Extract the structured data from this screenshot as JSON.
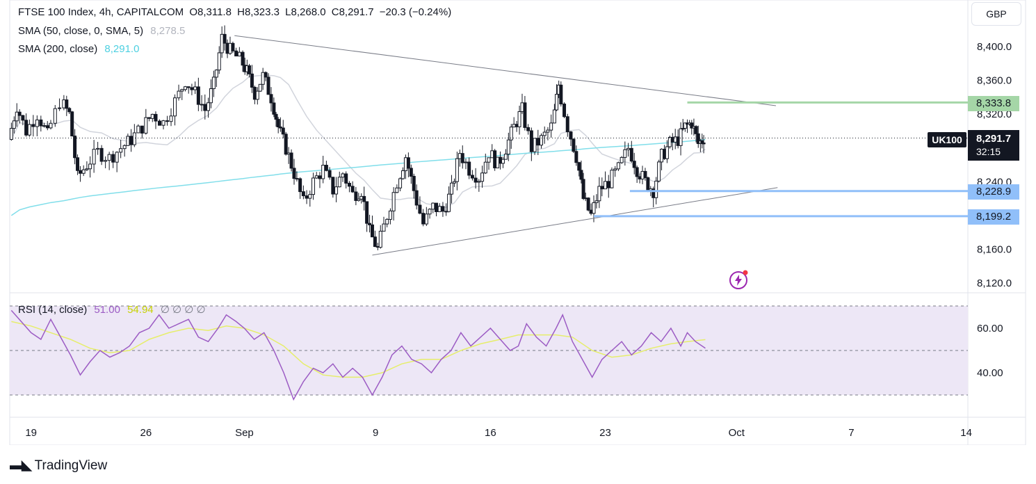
{
  "header": {
    "symbol_line": "FTSE 100 Index, 4h, CAPITALCOM",
    "open": "O8,311.8",
    "high": "H8,323.3",
    "low": "L8,268.0",
    "close": "C8,291.7",
    "change": "−20.3 (−0.24%)",
    "sma50_label": "SMA (50, close, 0, SMA, 5)",
    "sma50_value": "8,278.5",
    "sma200_label": "SMA (200, close)",
    "sma200_value": "8,291.0",
    "rsi_label": "RSI (14, close)",
    "rsi_value": "51.00",
    "rsi_ma_value": "54.94",
    "rsi_extra": "∅ ∅ ∅ ∅"
  },
  "currency": "GBP",
  "symbol_tag": "UK100",
  "price_tag": {
    "price": "8,291.7",
    "countdown": "32:15"
  },
  "level_tags": {
    "resistance": "8,333.8",
    "support1": "8,228.9",
    "support2": "8,199.2"
  },
  "brand": "TradingView",
  "colors": {
    "up": "#131722",
    "down": "#131722",
    "sma50": "#d1d4dc",
    "sma200": "#80deea",
    "rsi": "#9c5cc4",
    "rsi_ma": "#e6ee6a",
    "rsi_band": "#ede7f6",
    "resistance": "#a5d6a7",
    "support": "#90bff9"
  },
  "chart_data": [
    {
      "type": "candlestick",
      "title": "FTSE 100 Index, 4h, CAPITALCOM",
      "ylim": [
        8100,
        8460
      ],
      "y_ticks": [
        "8,400.0",
        "8,360.0",
        "8,320.0",
        "8,240.0",
        "8,160.0",
        "8,120.0"
      ],
      "y_tick_values": [
        8400,
        8360,
        8320,
        8240,
        8160,
        8120
      ],
      "x_ticks": [
        "19",
        "26",
        "Sep",
        "9",
        "16",
        "23",
        "Oct",
        "7",
        "14"
      ],
      "x_tick_days": [
        19,
        26,
        32,
        40,
        47,
        54,
        62,
        69,
        76
      ],
      "x_start_day": 17.7,
      "x_end_day": 76.1,
      "last_day": 60.1,
      "current_price": 8291.7,
      "closes_path": [
        [
          17.8,
          8290
        ],
        [
          18.3,
          8330
        ],
        [
          18.9,
          8300
        ],
        [
          19.6,
          8320
        ],
        [
          20.2,
          8295
        ],
        [
          21.0,
          8335
        ],
        [
          21.5,
          8320
        ],
        [
          22.0,
          8245
        ],
        [
          22.6,
          8260
        ],
        [
          23.3,
          8275
        ],
        [
          24.0,
          8268
        ],
        [
          24.7,
          8280
        ],
        [
          25.3,
          8290
        ],
        [
          26.0,
          8305
        ],
        [
          26.6,
          8320
        ],
        [
          27.3,
          8310
        ],
        [
          28.0,
          8335
        ],
        [
          28.6,
          8360
        ],
        [
          29.2,
          8345
        ],
        [
          29.8,
          8325
        ],
        [
          30.3,
          8355
        ],
        [
          30.8,
          8410
        ],
        [
          31.3,
          8395
        ],
        [
          31.9,
          8385
        ],
        [
          32.3,
          8370
        ],
        [
          32.8,
          8345
        ],
        [
          33.3,
          8365
        ],
        [
          33.8,
          8340
        ],
        [
          34.2,
          8305
        ],
        [
          34.7,
          8280
        ],
        [
          35.2,
          8250
        ],
        [
          35.8,
          8215
        ],
        [
          36.4,
          8240
        ],
        [
          37.0,
          8255
        ],
        [
          37.6,
          8230
        ],
        [
          38.2,
          8250
        ],
        [
          38.8,
          8225
        ],
        [
          39.3,
          8230
        ],
        [
          39.8,
          8180
        ],
        [
          40.3,
          8160
        ],
        [
          40.9,
          8200
        ],
        [
          41.5,
          8240
        ],
        [
          42.0,
          8270
        ],
        [
          42.5,
          8230
        ],
        [
          43.1,
          8190
        ],
        [
          43.7,
          8210
        ],
        [
          44.3,
          8205
        ],
        [
          44.8,
          8230
        ],
        [
          45.3,
          8275
        ],
        [
          45.9,
          8255
        ],
        [
          46.5,
          8245
        ],
        [
          47.1,
          8275
        ],
        [
          47.6,
          8260
        ],
        [
          48.1,
          8280
        ],
        [
          48.6,
          8305
        ],
        [
          49.1,
          8325
        ],
        [
          49.7,
          8280
        ],
        [
          50.3,
          8290
        ],
        [
          50.9,
          8305
        ],
        [
          51.3,
          8355
        ],
        [
          51.9,
          8305
        ],
        [
          52.4,
          8270
        ],
        [
          52.8,
          8220
        ],
        [
          53.3,
          8200
        ],
        [
          53.8,
          8230
        ],
        [
          54.4,
          8240
        ],
        [
          55.0,
          8255
        ],
        [
          55.6,
          8280
        ],
        [
          56.1,
          8255
        ],
        [
          56.6,
          8240
        ],
        [
          57.1,
          8230
        ],
        [
          57.6,
          8270
        ],
        [
          58.1,
          8285
        ],
        [
          58.6,
          8290
        ],
        [
          59.0,
          8305
        ],
        [
          59.4,
          8310
        ],
        [
          59.8,
          8285
        ],
        [
          60.1,
          8292
        ]
      ],
      "lows_anchor": [
        [
          39.9,
          8155
        ],
        [
          44.7,
          8165
        ],
        [
          53.4,
          8198
        ],
        [
          55.7,
          8228
        ]
      ],
      "highs_anchor": [
        [
          31.7,
          8412
        ],
        [
          51.3,
          8372
        ],
        [
          59.3,
          8333
        ]
      ],
      "trendlines": [
        {
          "name": "upper",
          "from": [
            31.4,
            8413
          ],
          "to": [
            64.4,
            8330
          ]
        },
        {
          "name": "lower",
          "from": [
            39.8,
            8153
          ],
          "to": [
            64.5,
            8233
          ]
        }
      ],
      "horizontal_levels": [
        {
          "name": "resistance",
          "price": 8333.8,
          "from_day": 59.0
        },
        {
          "name": "support1",
          "price": 8228.9,
          "from_day": 55.5
        },
        {
          "name": "support2",
          "price": 8199.2,
          "from_day": 53.3
        }
      ]
    },
    {
      "type": "line",
      "title": "RSI (14, close)",
      "ylim": [
        20,
        80
      ],
      "y_ticks": [
        "60.00",
        "40.00"
      ],
      "y_tick_values": [
        60,
        40
      ],
      "bands": [
        70,
        50,
        30
      ],
      "rsi_points": [
        [
          17.8,
          68
        ],
        [
          18.4,
          63
        ],
        [
          19.0,
          58
        ],
        [
          19.6,
          55
        ],
        [
          20.2,
          64
        ],
        [
          20.8,
          56
        ],
        [
          21.4,
          48
        ],
        [
          22.0,
          39
        ],
        [
          22.6,
          45
        ],
        [
          23.2,
          50
        ],
        [
          23.8,
          47
        ],
        [
          24.4,
          49
        ],
        [
          25.0,
          52
        ],
        [
          25.6,
          58
        ],
        [
          26.2,
          60
        ],
        [
          26.8,
          66
        ],
        [
          27.4,
          60
        ],
        [
          28.0,
          62
        ],
        [
          28.6,
          64
        ],
        [
          29.2,
          56
        ],
        [
          29.8,
          54
        ],
        [
          30.4,
          60
        ],
        [
          30.9,
          66
        ],
        [
          31.5,
          63
        ],
        [
          32.0,
          60
        ],
        [
          32.6,
          55
        ],
        [
          33.2,
          58
        ],
        [
          33.8,
          50
        ],
        [
          34.4,
          40
        ],
        [
          35.0,
          28
        ],
        [
          35.6,
          36
        ],
        [
          36.2,
          42
        ],
        [
          36.8,
          40
        ],
        [
          37.4,
          44
        ],
        [
          38.0,
          38
        ],
        [
          38.6,
          42
        ],
        [
          39.2,
          38
        ],
        [
          39.8,
          30
        ],
        [
          40.4,
          38
        ],
        [
          41.0,
          48
        ],
        [
          41.6,
          52
        ],
        [
          42.2,
          46
        ],
        [
          42.8,
          44
        ],
        [
          43.4,
          40
        ],
        [
          44.0,
          46
        ],
        [
          44.6,
          50
        ],
        [
          45.2,
          58
        ],
        [
          45.8,
          52
        ],
        [
          46.4,
          56
        ],
        [
          47.0,
          60
        ],
        [
          47.6,
          55
        ],
        [
          48.2,
          50
        ],
        [
          48.7,
          52
        ],
        [
          49.2,
          62
        ],
        [
          49.8,
          56
        ],
        [
          50.4,
          52
        ],
        [
          51.0,
          60
        ],
        [
          51.4,
          66
        ],
        [
          52.0,
          54
        ],
        [
          52.6,
          46
        ],
        [
          53.2,
          38
        ],
        [
          53.8,
          46
        ],
        [
          54.4,
          50
        ],
        [
          55.0,
          54
        ],
        [
          55.6,
          48
        ],
        [
          56.2,
          52
        ],
        [
          56.8,
          58
        ],
        [
          57.4,
          54
        ],
        [
          58.0,
          60
        ],
        [
          58.6,
          52
        ],
        [
          59.0,
          58
        ],
        [
          59.5,
          54
        ],
        [
          60.1,
          51
        ]
      ],
      "ma_points": [
        [
          17.8,
          63
        ],
        [
          19.0,
          61
        ],
        [
          20.2,
          58
        ],
        [
          21.4,
          55
        ],
        [
          22.6,
          51
        ],
        [
          23.8,
          49
        ],
        [
          25.0,
          50
        ],
        [
          26.2,
          55
        ],
        [
          27.4,
          58
        ],
        [
          28.6,
          60
        ],
        [
          29.8,
          59
        ],
        [
          30.9,
          61
        ],
        [
          32.0,
          60
        ],
        [
          33.2,
          57
        ],
        [
          34.4,
          52
        ],
        [
          35.6,
          44
        ],
        [
          36.8,
          39
        ],
        [
          38.0,
          38
        ],
        [
          39.2,
          38
        ],
        [
          40.4,
          40
        ],
        [
          41.6,
          44
        ],
        [
          42.8,
          46
        ],
        [
          44.0,
          46
        ],
        [
          45.2,
          50
        ],
        [
          46.4,
          53
        ],
        [
          47.6,
          55
        ],
        [
          48.7,
          57
        ],
        [
          49.8,
          57
        ],
        [
          51.0,
          57
        ],
        [
          52.0,
          56
        ],
        [
          53.2,
          50
        ],
        [
          54.4,
          47
        ],
        [
          55.6,
          48
        ],
        [
          56.8,
          51
        ],
        [
          58.0,
          53
        ],
        [
          59.0,
          54
        ],
        [
          60.1,
          54.9
        ]
      ]
    }
  ]
}
